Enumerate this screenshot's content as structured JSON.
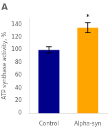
{
  "chart_data": {
    "type": "bar",
    "title": "A",
    "categories": [
      "Control",
      "Alpha-syn"
    ],
    "values": [
      100,
      135
    ],
    "errors": [
      5,
      8
    ],
    "colors": [
      "#00008B",
      "#FFA500"
    ],
    "ylabel": "ATP synthase activity, %",
    "ylim": [
      0,
      150
    ],
    "yticks": [
      0,
      20,
      40,
      60,
      80,
      100,
      120,
      140
    ],
    "annotations": [
      {
        "text": "*",
        "category": "Alpha-syn"
      }
    ],
    "grid": false,
    "legend": false
  }
}
